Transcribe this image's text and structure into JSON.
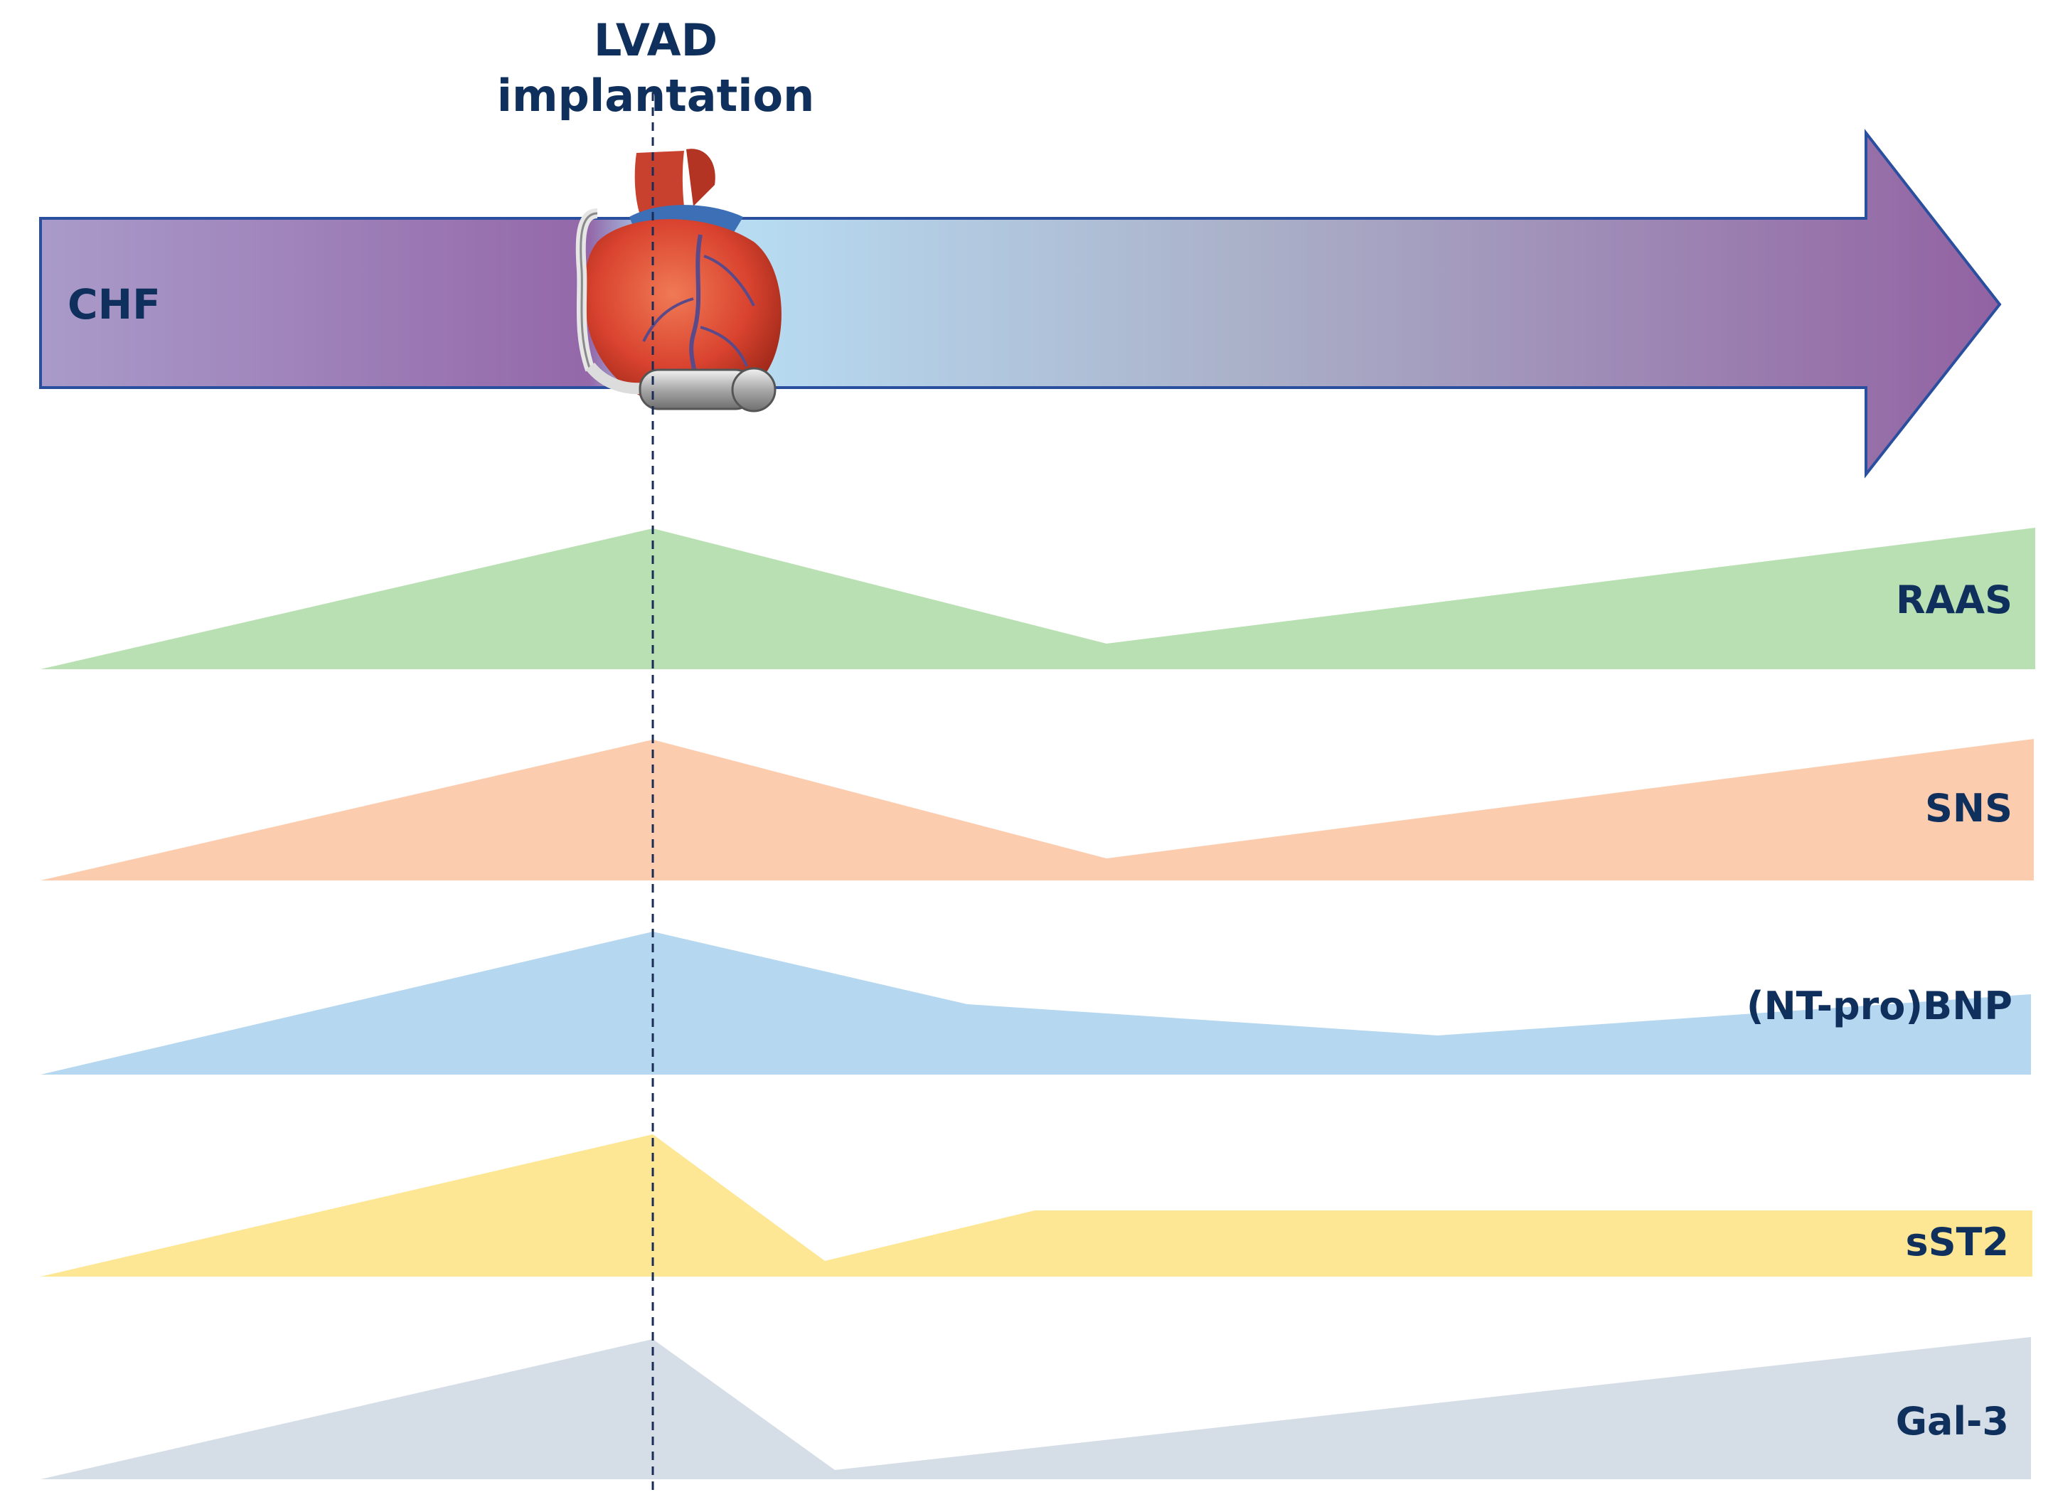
{
  "title": {
    "line1": "LVAD",
    "line2": "implantation"
  },
  "timeline": {
    "label": "CHF"
  },
  "markers": [
    {
      "name": "raas",
      "label": "RAAS",
      "color": "#b9e0b2"
    },
    {
      "name": "sns",
      "label": "SNS",
      "color": "#fcccae"
    },
    {
      "name": "ntprobnp",
      "label": "(NT-pro)BNP",
      "color": "#b5d7ef"
    },
    {
      "name": "sst2",
      "label": "sST2",
      "color": "#fde694"
    },
    {
      "name": "gal3",
      "label": "Gal-3",
      "color": "#d5dde7"
    }
  ],
  "colors": {
    "text": "#0f2f5c",
    "arrow_border": "#2a4f9e",
    "arrow_left": "#a99bc9",
    "arrow_mid": "#9468a9",
    "arrow_light": "#b7dcf2",
    "arrow_right": "#9262a2",
    "heart_red": "#d9432f",
    "dashed_line": "#1a2c55"
  },
  "icons": {
    "heart": "lvad-heart-icon"
  }
}
